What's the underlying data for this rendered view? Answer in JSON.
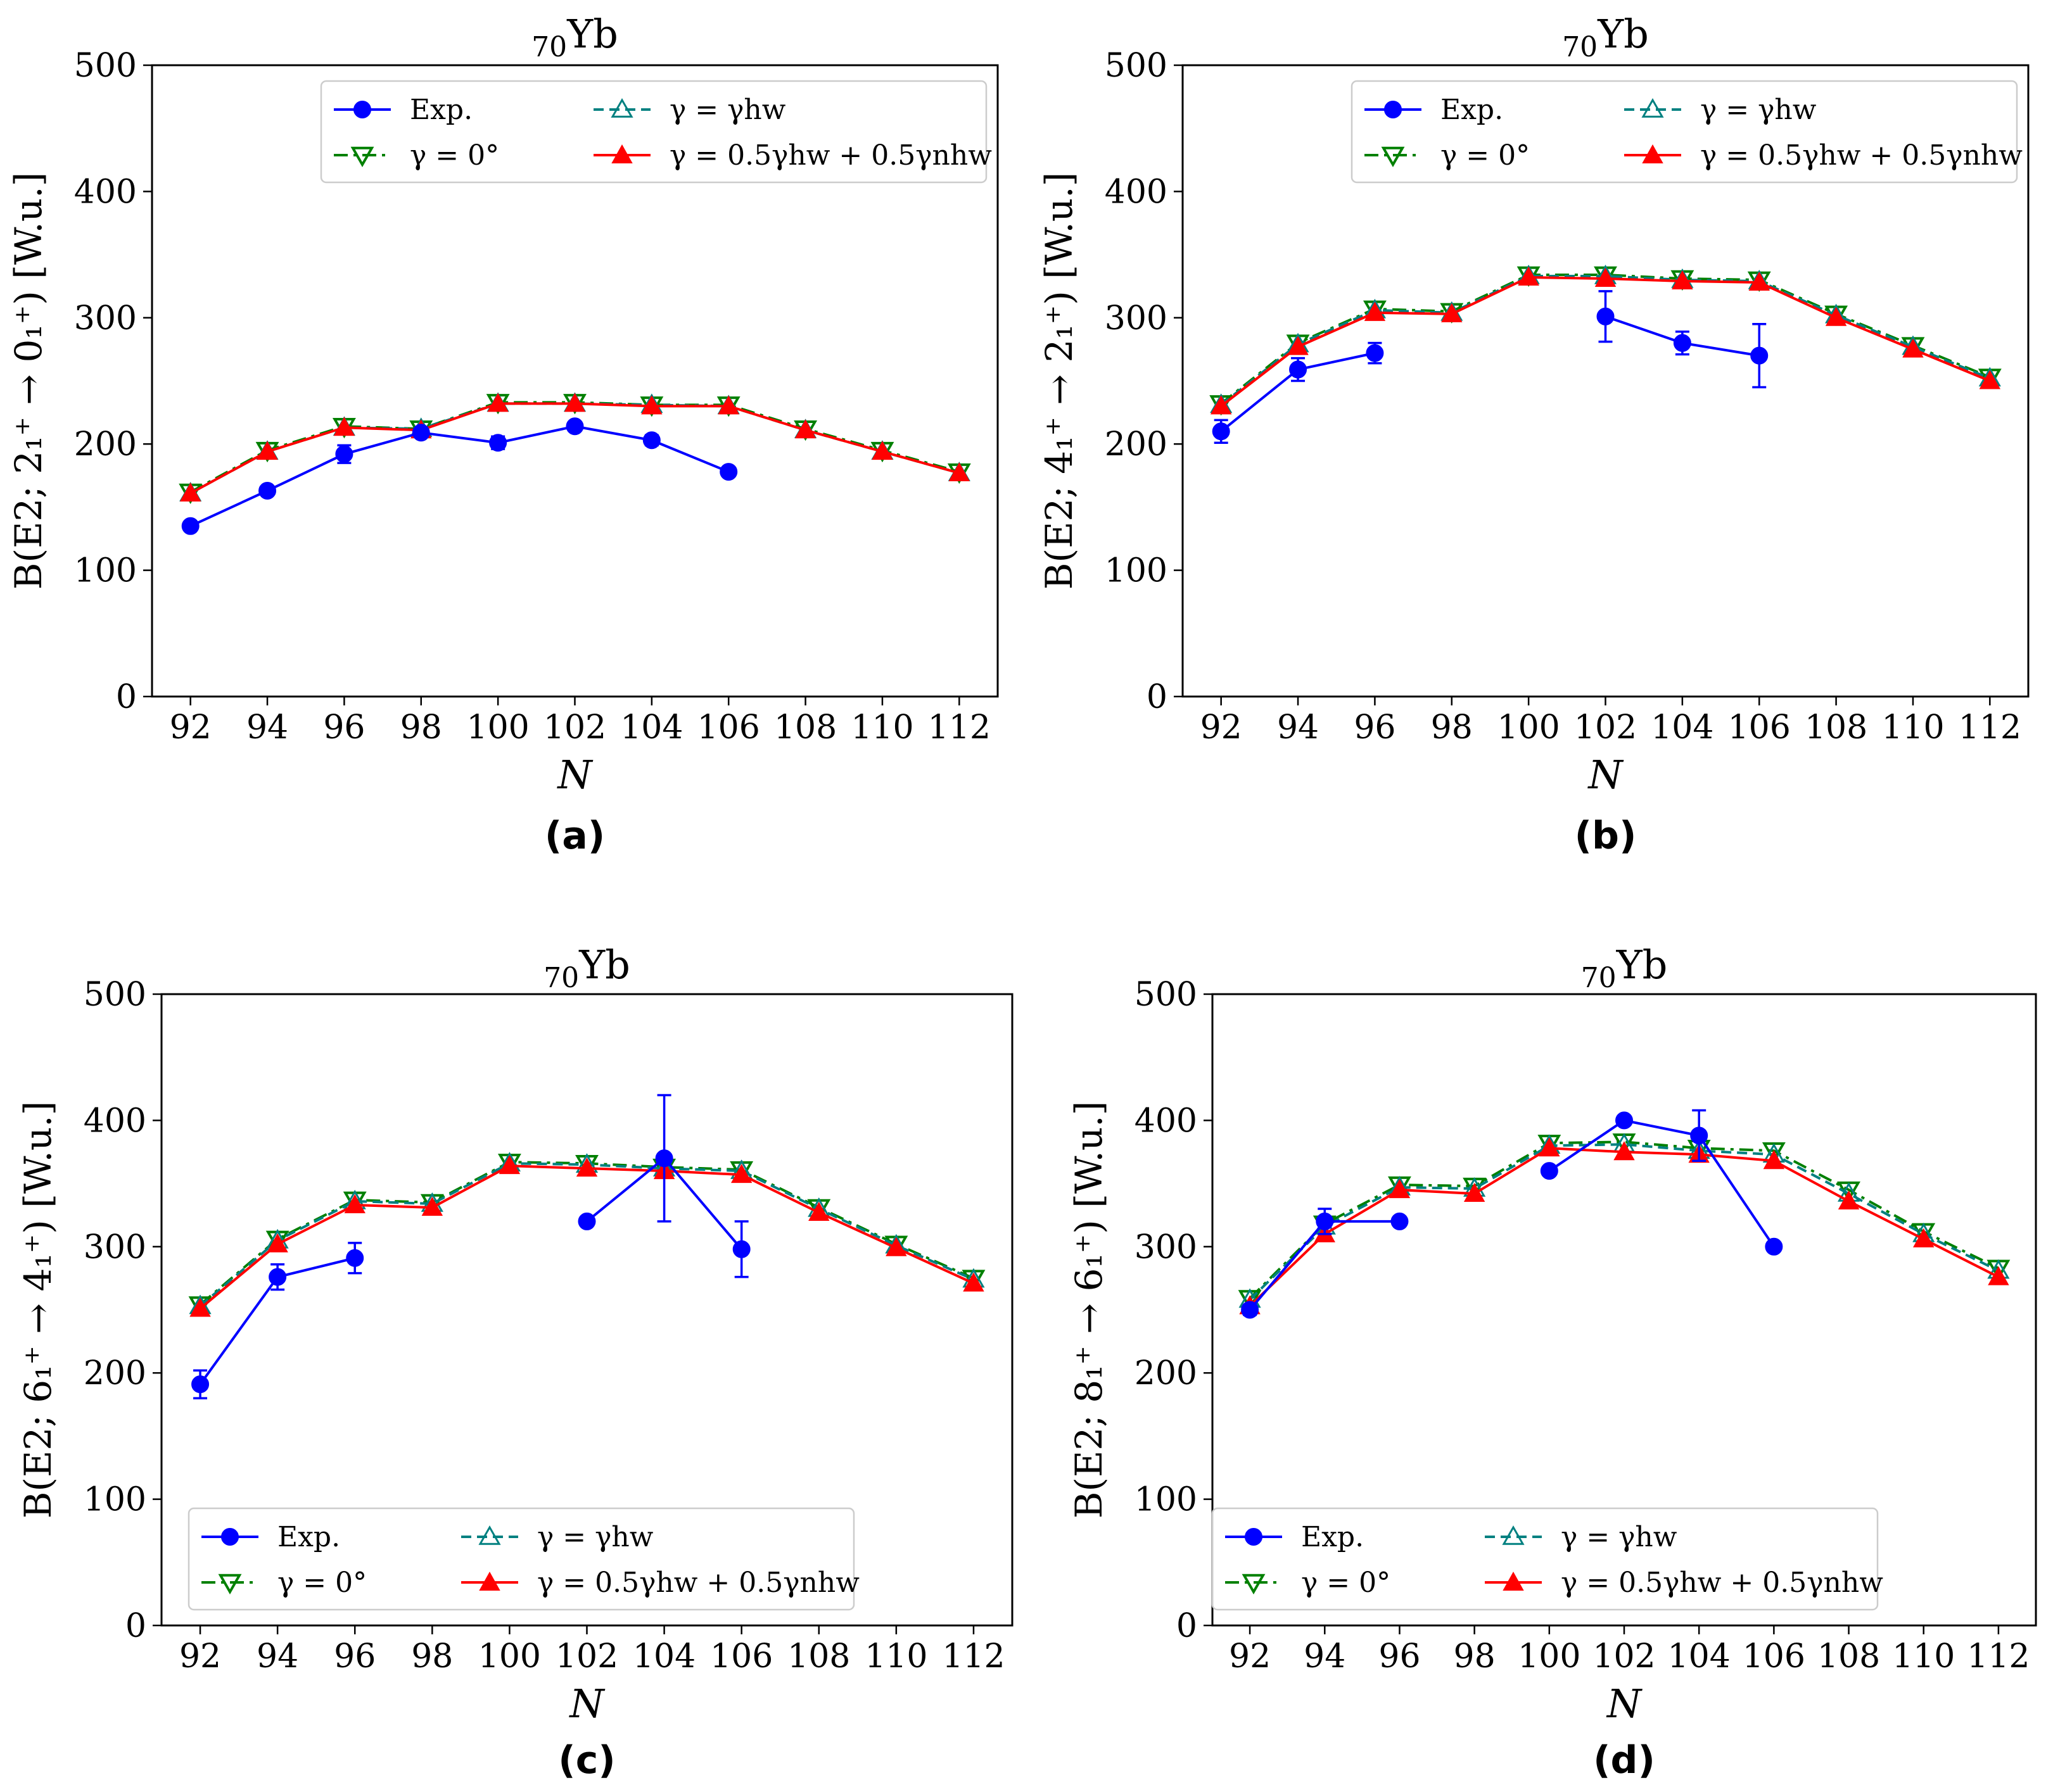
{
  "chart_data": [
    {
      "type": "line",
      "panel": "(a)",
      "title": "70Yb",
      "title_sub": "70",
      "title_main": "Yb",
      "xlabel": "N",
      "ylabel": "B(E2; 2₁⁺ → 0₁⁺) [W.u.]",
      "x_ticks": [
        "92",
        "94",
        "96",
        "98",
        "100",
        "102",
        "104",
        "106",
        "108",
        "110",
        "112"
      ],
      "y_ticks": [
        "0",
        "100",
        "200",
        "300",
        "400",
        "500"
      ],
      "xlim": [
        91,
        113
      ],
      "ylim": [
        0,
        500
      ],
      "legend_position": "upper-right",
      "series": [
        {
          "name": "Exp.",
          "color": "#0000ff",
          "marker": "circle",
          "line": "solid",
          "x": [
            92,
            94,
            96,
            98,
            100,
            102,
            104,
            106
          ],
          "y": [
            135,
            163,
            192,
            209,
            201,
            214,
            203,
            178
          ],
          "err": [
            3,
            3,
            7,
            3,
            5,
            3,
            4,
            2
          ]
        },
        {
          "name": "γ = 0°",
          "color": "#008000",
          "marker": "triangle-down",
          "line": "dashdot",
          "x": [
            92,
            94,
            96,
            98,
            100,
            102,
            104,
            106,
            108,
            110,
            112
          ],
          "y": [
            162,
            195,
            214,
            212,
            233,
            233,
            231,
            231,
            212,
            195,
            178
          ]
        },
        {
          "name": "γ = γhw",
          "color": "#008080",
          "marker": "triangle-up-open",
          "line": "dashed",
          "x": [
            92,
            94,
            96,
            98,
            100,
            102,
            104,
            106,
            108,
            110,
            112
          ],
          "y": [
            161,
            194,
            213,
            212,
            232,
            232,
            231,
            230,
            211,
            194,
            177
          ]
        },
        {
          "name": "γ = 0.5γhw + 0.5γnhw",
          "color": "#ff0000",
          "marker": "triangle-up",
          "line": "solid",
          "x": [
            92,
            94,
            96,
            98,
            100,
            102,
            104,
            106,
            108,
            110,
            112
          ],
          "y": [
            161,
            194,
            213,
            211,
            232,
            232,
            230,
            230,
            211,
            194,
            177
          ]
        }
      ]
    },
    {
      "type": "line",
      "panel": "(b)",
      "title": "70Yb",
      "title_sub": "70",
      "title_main": "Yb",
      "xlabel": "N",
      "ylabel": "B(E2; 4₁⁺ → 2₁⁺) [W.u.]",
      "x_ticks": [
        "92",
        "94",
        "96",
        "98",
        "100",
        "102",
        "104",
        "106",
        "108",
        "110",
        "112"
      ],
      "y_ticks": [
        "0",
        "100",
        "200",
        "300",
        "400",
        "500"
      ],
      "xlim": [
        91,
        113
      ],
      "ylim": [
        0,
        500
      ],
      "legend_position": "upper-right",
      "series": [
        {
          "name": "Exp.",
          "color": "#0000ff",
          "marker": "circle",
          "line": "solid",
          "x": [
            92,
            94,
            96,
            102,
            104,
            106
          ],
          "y": [
            210,
            259,
            272,
            301,
            280,
            270
          ],
          "err": [
            9,
            9,
            8,
            20,
            9,
            25
          ],
          "breaks_after": [
            96
          ]
        },
        {
          "name": "γ = 0°",
          "color": "#008000",
          "marker": "triangle-down",
          "line": "dashdot",
          "x": [
            92,
            94,
            96,
            98,
            100,
            102,
            104,
            106,
            108,
            110,
            112
          ],
          "y": [
            232,
            280,
            307,
            305,
            334,
            334,
            331,
            330,
            303,
            278,
            253
          ]
        },
        {
          "name": "γ = γhw",
          "color": "#008080",
          "marker": "triangle-up-open",
          "line": "dashed",
          "x": [
            92,
            94,
            96,
            98,
            100,
            102,
            104,
            106,
            108,
            110,
            112
          ],
          "y": [
            231,
            279,
            306,
            304,
            333,
            333,
            330,
            329,
            302,
            277,
            252
          ]
        },
        {
          "name": "γ = 0.5γhw + 0.5γnhw",
          "color": "#ff0000",
          "marker": "triangle-up",
          "line": "solid",
          "x": [
            92,
            94,
            96,
            98,
            100,
            102,
            104,
            106,
            108,
            110,
            112
          ],
          "y": [
            230,
            277,
            304,
            303,
            332,
            331,
            329,
            328,
            300,
            275,
            250
          ]
        }
      ]
    },
    {
      "type": "line",
      "panel": "(c)",
      "title": "70Yb",
      "title_sub": "70",
      "title_main": "Yb",
      "xlabel": "N",
      "ylabel": "B(E2; 6₁⁺ → 4₁⁺) [W.u.]",
      "x_ticks": [
        "92",
        "94",
        "96",
        "98",
        "100",
        "102",
        "104",
        "106",
        "108",
        "110",
        "112"
      ],
      "y_ticks": [
        "0",
        "100",
        "200",
        "300",
        "400",
        "500"
      ],
      "xlim": [
        91,
        113
      ],
      "ylim": [
        0,
        500
      ],
      "legend_position": "lower-right",
      "series": [
        {
          "name": "Exp.",
          "color": "#0000ff",
          "marker": "circle",
          "line": "solid",
          "x": [
            92,
            94,
            96,
            102,
            104,
            106
          ],
          "y": [
            191,
            276,
            291,
            320,
            370,
            298
          ],
          "err": [
            11,
            10,
            12,
            0,
            50,
            22
          ],
          "breaks_after": [
            96
          ]
        },
        {
          "name": "γ = 0°",
          "color": "#008000",
          "marker": "triangle-down",
          "line": "dashdot",
          "x": [
            92,
            94,
            96,
            98,
            100,
            102,
            104,
            106,
            108,
            110,
            112
          ],
          "y": [
            254,
            306,
            337,
            335,
            367,
            366,
            363,
            361,
            331,
            302,
            275
          ]
        },
        {
          "name": "γ = γhw",
          "color": "#008080",
          "marker": "triangle-up-open",
          "line": "dashed",
          "x": [
            92,
            94,
            96,
            98,
            100,
            102,
            104,
            106,
            108,
            110,
            112
          ],
          "y": [
            253,
            305,
            336,
            334,
            366,
            365,
            362,
            360,
            330,
            301,
            274
          ]
        },
        {
          "name": "γ = 0.5γhw + 0.5γnhw",
          "color": "#ff0000",
          "marker": "triangle-up",
          "line": "solid",
          "x": [
            92,
            94,
            96,
            98,
            100,
            102,
            104,
            106,
            108,
            110,
            112
          ],
          "y": [
            251,
            302,
            333,
            331,
            364,
            362,
            360,
            357,
            327,
            299,
            271
          ]
        }
      ]
    },
    {
      "type": "line",
      "panel": "(d)",
      "title": "70Yb",
      "title_sub": "70",
      "title_main": "Yb",
      "xlabel": "N",
      "ylabel": "B(E2; 8₁⁺ → 6₁⁺) [W.u.]",
      "x_ticks": [
        "92",
        "94",
        "96",
        "98",
        "100",
        "102",
        "104",
        "106",
        "108",
        "110",
        "112"
      ],
      "y_ticks": [
        "0",
        "100",
        "200",
        "300",
        "400",
        "500"
      ],
      "xlim": [
        91,
        113
      ],
      "ylim": [
        0,
        500
      ],
      "legend_position": "lower-right",
      "series": [
        {
          "name": "Exp.",
          "color": "#0000ff",
          "marker": "circle",
          "line": "solid",
          "x": [
            92,
            94,
            96,
            100,
            102,
            104,
            106
          ],
          "y": [
            250,
            320,
            320,
            360,
            400,
            388,
            300
          ],
          "err": [
            4,
            10,
            0,
            0,
            0,
            20,
            0
          ],
          "breaks_after": [
            96
          ]
        },
        {
          "name": "γ = 0°",
          "color": "#008000",
          "marker": "triangle-down",
          "line": "dashdot",
          "x": [
            92,
            94,
            96,
            98,
            100,
            102,
            104,
            106,
            108,
            110,
            112
          ],
          "y": [
            259,
            318,
            349,
            348,
            382,
            383,
            378,
            376,
            345,
            312,
            283
          ]
        },
        {
          "name": "γ = γhw",
          "color": "#008080",
          "marker": "triangle-up-open",
          "line": "dashed",
          "x": [
            92,
            94,
            96,
            98,
            100,
            102,
            104,
            106,
            108,
            110,
            112
          ],
          "y": [
            258,
            316,
            347,
            346,
            380,
            381,
            376,
            373,
            342,
            310,
            281
          ]
        },
        {
          "name": "γ = 0.5γhw + 0.5γnhw",
          "color": "#ff0000",
          "marker": "triangle-up",
          "line": "solid",
          "x": [
            92,
            94,
            96,
            98,
            100,
            102,
            104,
            106,
            108,
            110,
            112
          ],
          "y": [
            253,
            310,
            345,
            342,
            378,
            375,
            373,
            368,
            336,
            306,
            276
          ]
        }
      ]
    }
  ]
}
